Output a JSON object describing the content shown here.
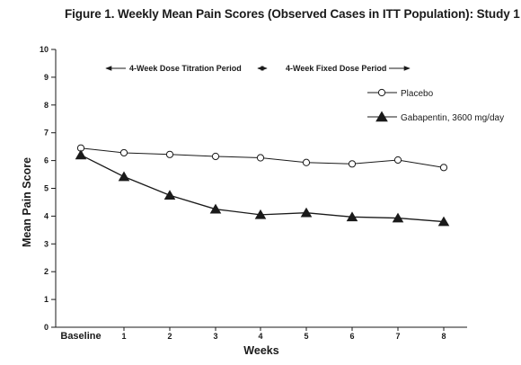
{
  "title": "Figure 1. Weekly Mean Pain Scores (Observed Cases in ITT Population): Study 1",
  "chart_data": {
    "type": "line",
    "title": "Figure 1. Weekly Mean Pain Scores (Observed Cases in ITT Population): Study 1",
    "xlabel": "Weeks",
    "ylabel": "Mean Pain Score",
    "categories": [
      "Baseline",
      "1",
      "2",
      "3",
      "4",
      "5",
      "6",
      "7",
      "8"
    ],
    "ylim": [
      0,
      10
    ],
    "yticks": [
      "0",
      "1",
      "2",
      "3",
      "4",
      "5",
      "6",
      "7",
      "8",
      "9",
      "10"
    ],
    "grid": false,
    "legend_position": "top-right",
    "series": [
      {
        "name": "Placebo",
        "marker": "open-circle",
        "values": [
          6.45,
          6.28,
          6.22,
          6.15,
          6.1,
          5.93,
          5.88,
          6.02,
          5.75
        ]
      },
      {
        "name": "Gabapentin, 3600 mg/day",
        "marker": "filled-triangle",
        "values": [
          6.2,
          5.42,
          4.75,
          4.25,
          4.05,
          4.12,
          3.97,
          3.93,
          3.8
        ]
      }
    ],
    "annotations": [
      {
        "text": "4-Week Dose Titration Period",
        "x_from": "Baseline",
        "x_to": "4"
      },
      {
        "text": "4-Week Fixed Dose Period",
        "x_from": "4",
        "x_to": "8"
      }
    ]
  }
}
